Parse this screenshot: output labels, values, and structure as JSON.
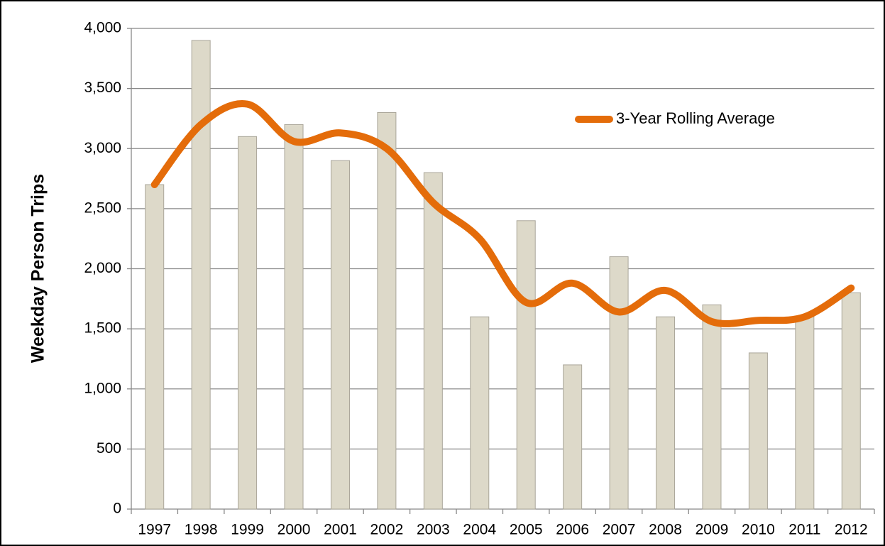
{
  "chart_data": {
    "type": "bar",
    "y_label": "Weekday Person Trips",
    "categories": [
      "1997",
      "1998",
      "1999",
      "2000",
      "2001",
      "2002",
      "2003",
      "2004",
      "2005",
      "2006",
      "2007",
      "2008",
      "2009",
      "2010",
      "2011",
      "2012"
    ],
    "series": [
      {
        "type": "bar",
        "color": "#ddd9c9",
        "values": [
          2700,
          3900,
          3100,
          3200,
          2900,
          3300,
          2800,
          1600,
          2400,
          1200,
          2100,
          1600,
          1700,
          1300,
          1600,
          1800
        ]
      },
      {
        "type": "line",
        "name": "3-Year Rolling Average",
        "color": "#e46c0a",
        "values": [
          2700,
          3200,
          3370,
          3060,
          3130,
          3000,
          2550,
          2250,
          1720,
          1880,
          1640,
          1820,
          1560,
          1570,
          1600,
          1840
        ]
      }
    ],
    "ylim": [
      0,
      4000
    ],
    "yticks": [
      0,
      {
        "value": 500,
        "label": "500"
      },
      {
        "value": 1000,
        "label": "1,000"
      },
      {
        "value": 1500,
        "label": "1,500"
      },
      {
        "value": 2000,
        "label": "2,000"
      },
      {
        "value": 2500,
        "label": "2,500"
      },
      {
        "value": 3000,
        "label": "3,000"
      },
      {
        "value": 3500,
        "label": "3,500"
      },
      {
        "value": 4000,
        "label": "4,000"
      }
    ],
    "grid": true,
    "legend": "upper right"
  }
}
